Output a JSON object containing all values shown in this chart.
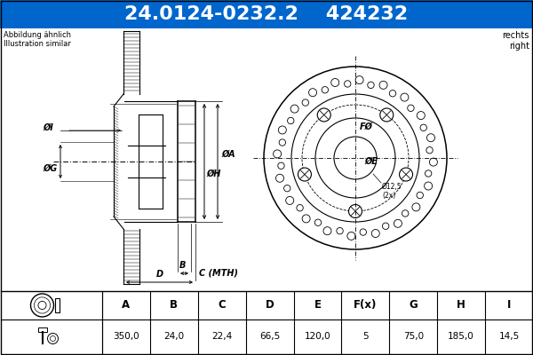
{
  "title1": "24.0124-0232.2",
  "title2": "424232",
  "header_bg": "#0066cc",
  "header_text_color": "#ffffff",
  "fig_bg": "#ffffff",
  "table_headers": [
    "A",
    "B",
    "C",
    "D",
    "E",
    "F(x)",
    "G",
    "H",
    "I"
  ],
  "table_values": [
    "350,0",
    "24,0",
    "22,4",
    "66,5",
    "120,0",
    "5",
    "75,0",
    "185,0",
    "14,5"
  ],
  "note_left": "Abbildung ähnlich\nIllustration similar",
  "note_right": "rechts\nright",
  "label_A": "ØA",
  "label_H": "ØH",
  "label_G": "ØG",
  "label_I": "ØI",
  "label_B": "B",
  "label_C": "C (MTH)",
  "label_D": "D",
  "label_E": "ØE",
  "label_F": "FØ",
  "label_12": "Ø12,5\n(2x)"
}
